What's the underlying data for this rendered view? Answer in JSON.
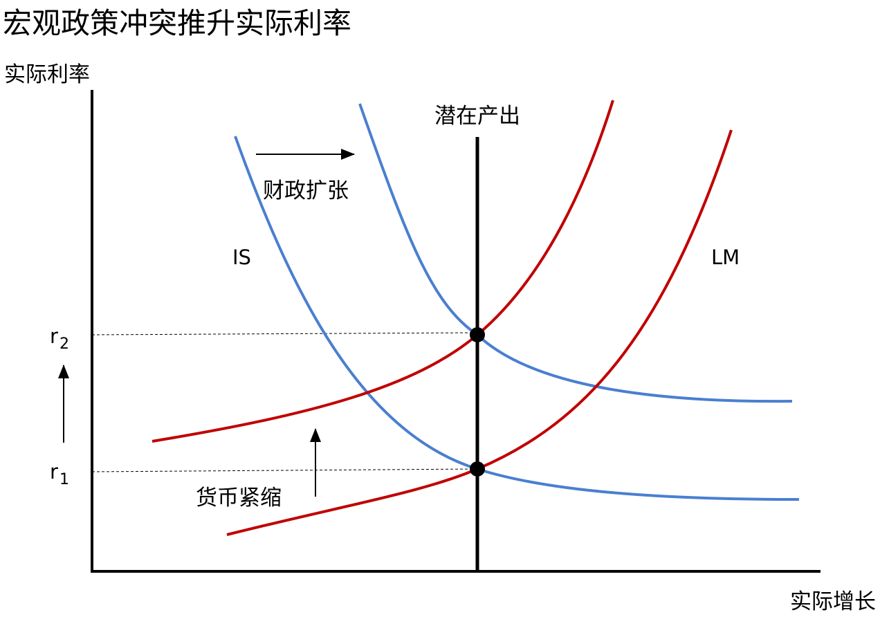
{
  "title": "宏观政策冲突推升实际利率",
  "y_axis_label": "实际利率",
  "x_axis_label": "实际增长",
  "labels": {
    "potential_output": "潜在产出",
    "fiscal_expansion": "财政扩张",
    "is_curve": "IS",
    "lm_curve": "LM",
    "monetary_tightening": "货币紧缩"
  },
  "rates": [
    {
      "main": "r",
      "sub": "2"
    },
    {
      "main": "r",
      "sub": "1"
    }
  ]
}
